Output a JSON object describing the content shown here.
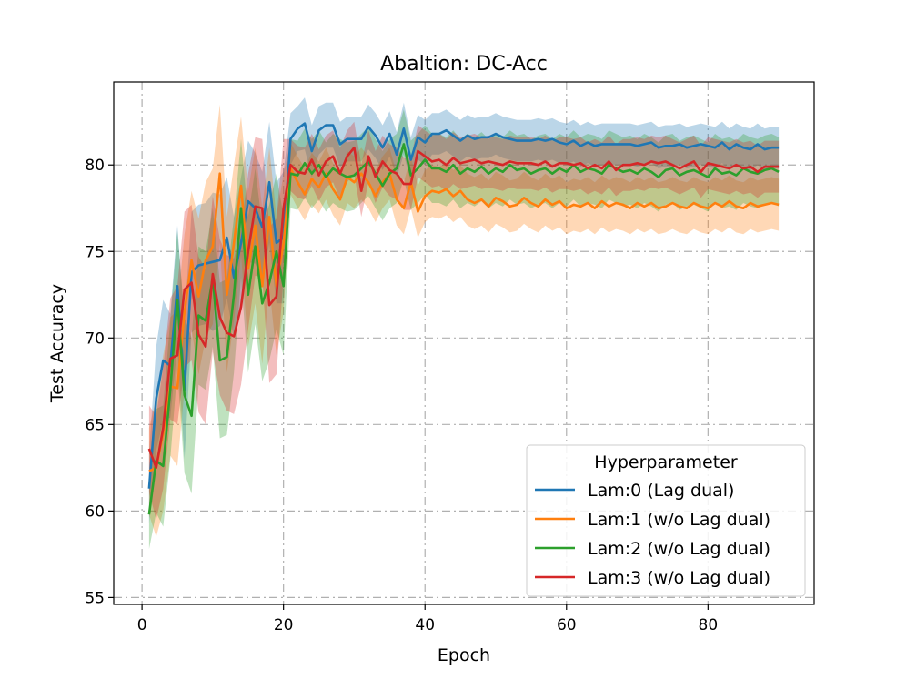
{
  "chart_data": {
    "type": "line",
    "title": "Abaltion: DC-Acc",
    "xlabel": "Epoch",
    "ylabel": "Test Accuracy",
    "xlim": [
      -4,
      95
    ],
    "ylim": [
      54.6,
      84.8
    ],
    "xticks": [
      0,
      20,
      40,
      60,
      80
    ],
    "yticks": [
      55,
      60,
      65,
      70,
      75,
      80
    ],
    "grid": true,
    "legend": {
      "title": "Hyperparameter",
      "location": "lower-right"
    },
    "x": [
      1,
      2,
      3,
      4,
      5,
      6,
      7,
      8,
      9,
      10,
      11,
      12,
      13,
      14,
      15,
      16,
      17,
      18,
      19,
      20,
      21,
      22,
      23,
      24,
      25,
      26,
      27,
      28,
      29,
      30,
      31,
      32,
      33,
      34,
      35,
      36,
      37,
      38,
      39,
      40,
      41,
      42,
      43,
      44,
      45,
      46,
      47,
      48,
      49,
      50,
      51,
      52,
      53,
      54,
      55,
      56,
      57,
      58,
      59,
      60,
      61,
      62,
      63,
      64,
      65,
      66,
      67,
      68,
      69,
      70,
      71,
      72,
      73,
      74,
      75,
      76,
      77,
      78,
      79,
      80,
      81,
      82,
      83,
      84,
      85,
      86,
      87,
      88,
      89,
      90
    ],
    "series": [
      {
        "name": "Lam:0 (Lag dual)",
        "color": "#1f77b4",
        "values": [
          61.3,
          66.5,
          68.7,
          68.4,
          73.0,
          67.0,
          73.8,
          74.2,
          74.3,
          74.4,
          74.5,
          75.8,
          73.5,
          75.5,
          77.9,
          77.5,
          76.4,
          79.0,
          75.5,
          75.8,
          81.5,
          82.1,
          82.4,
          80.8,
          82.0,
          82.3,
          82.3,
          81.2,
          81.5,
          81.5,
          81.5,
          82.2,
          81.7,
          81.0,
          81.8,
          80.6,
          82.1,
          80.3,
          81.6,
          81.3,
          81.8,
          81.8,
          82.0,
          81.7,
          81.4,
          81.7,
          81.5,
          81.6,
          81.6,
          81.8,
          81.6,
          81.5,
          81.4,
          81.4,
          81.4,
          81.5,
          81.4,
          81.5,
          81.3,
          81.2,
          81.4,
          81.1,
          81.3,
          81.1,
          81.2,
          81.2,
          81.2,
          81.2,
          81.2,
          81.1,
          81.2,
          81.3,
          81.0,
          81.1,
          81.1,
          81.2,
          81.0,
          81.1,
          81.2,
          81.1,
          81.0,
          81.3,
          80.9,
          81.2,
          81.0,
          80.9,
          81.2,
          80.9,
          81.0,
          81.0
        ],
        "band": [
          2.0,
          3.0,
          3.5,
          3.0,
          3.5,
          4.0,
          3.5,
          3.5,
          3.5,
          4.0,
          3.8,
          3.5,
          3.5,
          3.8,
          3.5,
          3.2,
          3.2,
          3.5,
          3.5,
          3.8,
          1.5,
          1.3,
          1.5,
          1.5,
          1.4,
          1.3,
          1.3,
          1.3,
          1.3,
          1.3,
          1.3,
          1.3,
          1.3,
          1.3,
          1.3,
          1.3,
          1.5,
          1.3,
          1.3,
          1.3,
          1.2,
          1.2,
          1.2,
          1.2,
          1.2,
          1.2,
          1.2,
          1.2,
          1.2,
          1.2,
          1.2,
          1.2,
          1.2,
          1.2,
          1.2,
          1.2,
          1.2,
          1.2,
          1.2,
          1.2,
          1.2,
          1.2,
          1.2,
          1.2,
          1.2,
          1.2,
          1.2,
          1.2,
          1.2,
          1.2,
          1.2,
          1.2,
          1.2,
          1.2,
          1.2,
          1.2,
          1.2,
          1.2,
          1.2,
          1.2,
          1.2,
          1.2,
          1.2,
          1.2,
          1.2,
          1.2,
          1.2,
          1.2,
          1.2,
          1.2
        ]
      },
      {
        "name": "Lam:1 (w/o Lag dual)",
        "color": "#ff7f0e",
        "values": [
          62.3,
          62.5,
          64.5,
          67.2,
          67.1,
          71.5,
          74.5,
          72.4,
          74.5,
          75.3,
          79.5,
          72.5,
          75.5,
          78.8,
          74.0,
          76.5,
          73.0,
          77.0,
          73.0,
          75.5,
          79.8,
          79.0,
          78.3,
          79.2,
          78.7,
          79.5,
          78.6,
          78.0,
          79.3,
          79.0,
          79.5,
          79.0,
          78.2,
          79.0,
          79.5,
          78.0,
          77.5,
          79.0,
          77.3,
          78.2,
          78.5,
          78.4,
          78.6,
          78.2,
          78.5,
          78.0,
          77.8,
          78.0,
          77.6,
          78.1,
          77.9,
          77.6,
          77.7,
          78.1,
          77.8,
          77.6,
          78.0,
          77.7,
          77.9,
          77.5,
          77.7,
          77.6,
          77.8,
          77.5,
          77.9,
          77.6,
          77.8,
          77.7,
          77.5,
          77.8,
          77.6,
          77.8,
          77.5,
          77.6,
          77.8,
          77.6,
          77.5,
          77.8,
          77.6,
          77.5,
          77.8,
          77.6,
          77.9,
          77.6,
          77.5,
          77.8,
          77.6,
          77.7,
          77.8,
          77.7
        ],
        "band": [
          2.5,
          4.0,
          4.5,
          4.0,
          4.5,
          4.5,
          4.0,
          4.5,
          4.5,
          4.5,
          4.0,
          4.5,
          4.5,
          4.0,
          4.5,
          4.5,
          4.5,
          4.0,
          4.0,
          4.0,
          1.5,
          1.5,
          1.5,
          1.5,
          1.5,
          1.5,
          1.5,
          1.5,
          1.5,
          1.5,
          1.5,
          1.5,
          1.5,
          1.5,
          1.5,
          1.5,
          1.5,
          1.5,
          1.5,
          1.5,
          1.5,
          1.5,
          1.5,
          1.5,
          1.5,
          1.5,
          1.5,
          1.5,
          1.5,
          1.5,
          1.5,
          1.5,
          1.5,
          1.5,
          1.5,
          1.5,
          1.5,
          1.5,
          1.5,
          1.5,
          1.5,
          1.5,
          1.5,
          1.5,
          1.5,
          1.5,
          1.5,
          1.5,
          1.5,
          1.5,
          1.5,
          1.5,
          1.5,
          1.5,
          1.5,
          1.5,
          1.5,
          1.5,
          1.5,
          1.5,
          1.5,
          1.5,
          1.5,
          1.5,
          1.5,
          1.5,
          1.5,
          1.5,
          1.5,
          1.5
        ]
      },
      {
        "name": "Lam:2 (w/o Lag dual)",
        "color": "#2ca02c",
        "values": [
          59.8,
          62.9,
          62.6,
          67.0,
          72.2,
          66.7,
          65.5,
          71.3,
          71.0,
          73.5,
          68.7,
          68.9,
          72.5,
          77.5,
          72.5,
          75.3,
          72.0,
          73.2,
          75.0,
          73.0,
          79.5,
          79.4,
          80.1,
          79.5,
          80.0,
          79.3,
          79.8,
          79.5,
          79.3,
          79.4,
          79.8,
          80.2,
          79.5,
          78.8,
          79.5,
          79.8,
          81.2,
          79.4,
          79.8,
          80.3,
          79.8,
          79.8,
          79.6,
          80.0,
          79.5,
          79.8,
          79.6,
          79.9,
          79.5,
          79.8,
          79.6,
          80.0,
          79.7,
          79.8,
          79.5,
          79.7,
          79.8,
          79.5,
          79.8,
          79.6,
          80.0,
          79.6,
          79.8,
          79.7,
          79.5,
          80.0,
          79.8,
          79.6,
          79.7,
          79.5,
          79.8,
          79.6,
          79.3,
          79.7,
          79.8,
          79.4,
          79.6,
          79.7,
          79.5,
          79.3,
          79.8,
          79.5,
          79.6,
          79.4,
          79.8,
          79.6,
          79.5,
          79.7,
          79.8,
          79.6
        ],
        "band": [
          2.0,
          3.0,
          3.5,
          4.0,
          4.0,
          4.5,
          4.5,
          4.0,
          4.0,
          4.0,
          4.5,
          4.5,
          4.5,
          4.0,
          4.5,
          4.5,
          4.5,
          4.5,
          4.5,
          4.0,
          2.0,
          2.0,
          2.0,
          2.0,
          2.0,
          2.0,
          2.0,
          2.0,
          2.0,
          2.0,
          2.0,
          2.0,
          2.0,
          2.0,
          2.0,
          2.0,
          2.0,
          2.0,
          2.0,
          2.0,
          2.0,
          2.0,
          2.0,
          2.0,
          2.0,
          2.0,
          2.0,
          2.0,
          2.0,
          2.0,
          2.0,
          2.0,
          2.0,
          2.0,
          2.0,
          2.0,
          2.0,
          2.0,
          2.0,
          2.0,
          2.0,
          2.0,
          2.0,
          2.0,
          2.0,
          2.0,
          2.0,
          2.0,
          2.0,
          2.0,
          2.0,
          2.0,
          2.0,
          2.0,
          2.0,
          2.0,
          2.0,
          2.0,
          2.0,
          2.0,
          2.0,
          2.0,
          2.0,
          2.0,
          2.0,
          2.0,
          2.0,
          2.0,
          2.0,
          2.0
        ]
      },
      {
        "name": "Lam:3 (w/o Lag dual)",
        "color": "#d62728",
        "values": [
          63.6,
          62.5,
          64.8,
          68.8,
          69.0,
          72.8,
          73.2,
          70.2,
          69.5,
          73.7,
          71.2,
          70.3,
          70.1,
          71.8,
          75.0,
          77.6,
          77.5,
          71.9,
          72.4,
          77.5,
          80.0,
          79.6,
          79.5,
          80.3,
          79.4,
          80.2,
          80.5,
          79.5,
          80.5,
          81.0,
          78.5,
          80.5,
          79.3,
          80.2,
          79.7,
          79.5,
          78.9,
          78.9,
          80.8,
          80.5,
          80.2,
          80.3,
          80.0,
          80.4,
          80.1,
          80.2,
          80.3,
          80.1,
          80.2,
          80.1,
          80.0,
          80.2,
          80.1,
          80.1,
          80.1,
          80.0,
          80.2,
          79.9,
          80.1,
          80.1,
          80.0,
          80.1,
          79.8,
          80.0,
          79.8,
          80.2,
          79.7,
          80.0,
          80.0,
          80.1,
          80.0,
          80.2,
          80.1,
          80.2,
          80.0,
          79.8,
          80.0,
          80.2,
          79.6,
          80.1,
          80.0,
          79.9,
          79.8,
          80.0,
          79.8,
          79.9,
          79.6,
          79.9,
          79.9,
          79.9
        ],
        "band": [
          2.5,
          3.0,
          3.5,
          3.5,
          4.0,
          4.5,
          4.5,
          4.5,
          4.5,
          4.5,
          4.5,
          4.5,
          4.5,
          4.5,
          4.5,
          4.0,
          4.0,
          4.5,
          4.5,
          4.0,
          1.5,
          1.5,
          1.5,
          1.5,
          1.5,
          1.5,
          1.5,
          1.5,
          1.5,
          1.5,
          1.5,
          1.5,
          1.5,
          1.5,
          1.5,
          1.5,
          1.5,
          1.5,
          1.5,
          1.5,
          1.5,
          1.5,
          1.5,
          1.5,
          1.5,
          1.5,
          1.5,
          1.5,
          1.5,
          1.5,
          1.5,
          1.5,
          1.5,
          1.5,
          1.5,
          1.5,
          1.5,
          1.5,
          1.5,
          1.5,
          1.5,
          1.5,
          1.5,
          1.5,
          1.5,
          1.5,
          1.5,
          1.5,
          1.5,
          1.5,
          1.5,
          1.5,
          1.5,
          1.5,
          1.5,
          1.5,
          1.5,
          1.5,
          1.5,
          1.5,
          1.5,
          1.5,
          1.5,
          1.5,
          1.5,
          1.5,
          1.5,
          1.5,
          1.5,
          1.5
        ]
      }
    ]
  }
}
